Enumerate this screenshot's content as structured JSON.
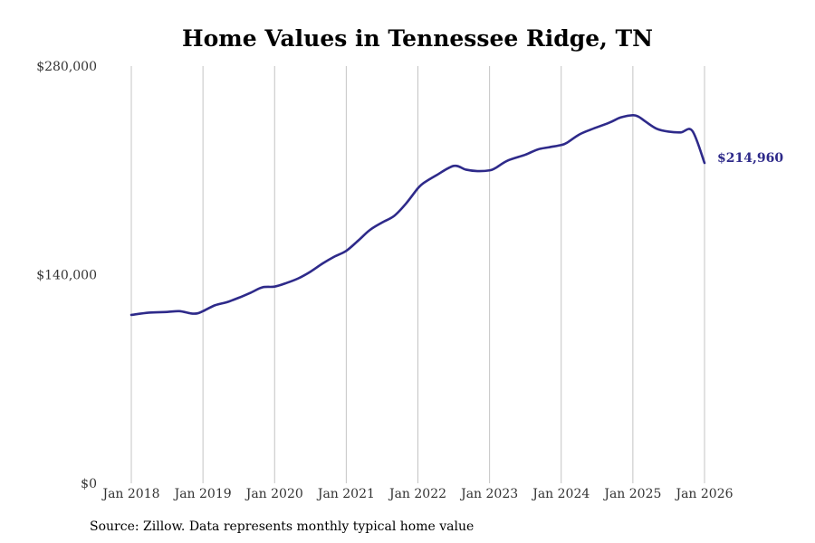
{
  "chart_data": {
    "type": "line",
    "title": "Home Values in Tennessee Ridge, TN",
    "xlabel": "",
    "ylabel": "",
    "ylim": [
      0,
      280000
    ],
    "yticks": [
      0,
      140000,
      280000
    ],
    "ytick_labels": [
      "$0",
      "$140,000",
      "$280,000"
    ],
    "xlim": [
      2018.0,
      2026.0
    ],
    "xticks": [
      2018,
      2019,
      2020,
      2021,
      2022,
      2023,
      2024,
      2025,
      2026
    ],
    "xtick_labels": [
      "Jan 2018",
      "Jan 2019",
      "Jan 2020",
      "Jan 2021",
      "Jan 2022",
      "Jan 2023",
      "Jan 2024",
      "Jan 2025",
      "Jan 2026"
    ],
    "grid": "vertical",
    "end_label": "$214,960",
    "line_color": "#2e2a8a",
    "series": [
      {
        "name": "Typical home value",
        "x": [
          2018.0,
          2018.25,
          2018.5,
          2018.67,
          2018.83,
          2018.92,
          2019.0,
          2019.17,
          2019.33,
          2019.5,
          2019.67,
          2019.83,
          2020.0,
          2020.17,
          2020.33,
          2020.5,
          2020.67,
          2020.83,
          2021.0,
          2021.17,
          2021.33,
          2021.5,
          2021.67,
          2021.83,
          2022.0,
          2022.08,
          2022.25,
          2022.5,
          2022.67,
          2022.83,
          2023.0,
          2023.08,
          2023.25,
          2023.5,
          2023.67,
          2023.83,
          2024.0,
          2024.08,
          2024.25,
          2024.42,
          2024.67,
          2024.83,
          2025.0,
          2025.08,
          2025.17,
          2025.33,
          2025.5,
          2025.67,
          2025.83,
          2026.0
        ],
        "values": [
          113000,
          114500,
          115000,
          115500,
          114000,
          114000,
          115500,
          119500,
          121500,
          124500,
          128000,
          131500,
          132000,
          134500,
          137500,
          142000,
          147500,
          152000,
          156000,
          163000,
          170000,
          175000,
          179500,
          187500,
          198000,
          201500,
          206500,
          213000,
          210500,
          209500,
          210000,
          211500,
          216500,
          220500,
          224000,
          225500,
          227000,
          228500,
          234000,
          237500,
          242000,
          245500,
          247000,
          246000,
          243000,
          238000,
          236000,
          235500,
          236500,
          214960
        ]
      }
    ]
  },
  "source_note": "Source: Zillow. Data represents monthly typical home value"
}
